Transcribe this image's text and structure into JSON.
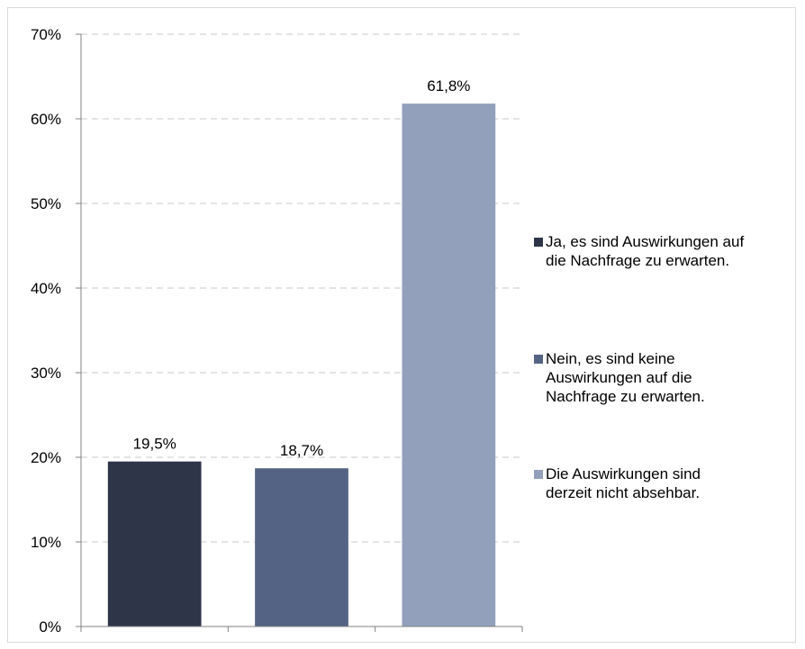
{
  "chart_data": {
    "type": "bar",
    "categories": [
      "Ja, es sind Auswirkungen auf die Nachfrage zu erwarten.",
      "Nein, es sind keine Auswirkungen auf die Nachfrage zu erwarten.",
      "Die Auswirkungen sind derzeit nicht absehbar."
    ],
    "values": [
      19.5,
      18.7,
      61.8
    ],
    "data_labels": [
      "19,5%",
      "18,7%",
      "61,8%"
    ],
    "colors": [
      "#2e3548",
      "#546384",
      "#92a0bb"
    ],
    "ylim": [
      0,
      70
    ],
    "yticks": [
      0,
      10,
      20,
      30,
      40,
      50,
      60,
      70
    ],
    "ytick_labels": [
      "0%",
      "10%",
      "20%",
      "30%",
      "40%",
      "50%",
      "60%",
      "70%"
    ],
    "grid": true,
    "legend_position": "right",
    "title": "",
    "xlabel": "",
    "ylabel": ""
  },
  "legend": {
    "items": [
      {
        "label_line1": "Ja, es sind Auswirkungen auf",
        "label_line2": "die Nachfrage zu erwarten.",
        "label_line3": ""
      },
      {
        "label_line1": "Nein, es sind keine",
        "label_line2": "Auswirkungen auf die",
        "label_line3": "Nachfrage zu erwarten."
      },
      {
        "label_line1": "Die Auswirkungen sind",
        "label_line2": "derzeit nicht absehbar.",
        "label_line3": ""
      }
    ]
  }
}
